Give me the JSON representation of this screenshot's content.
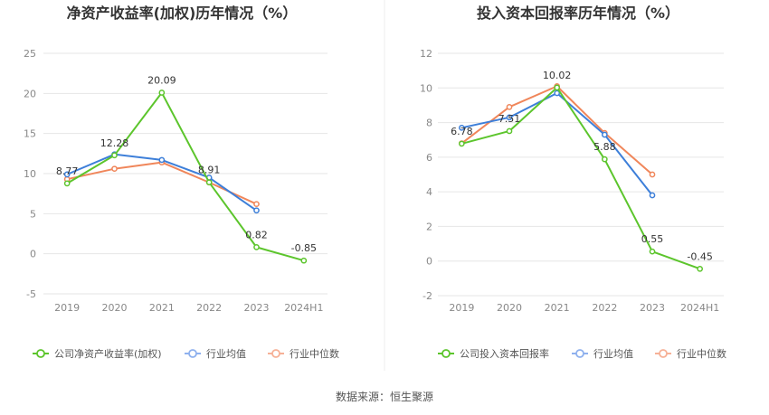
{
  "source_label": "数据来源：恒生聚源",
  "legend_common": {
    "industry_avg": "行业均值",
    "industry_median": "行业中位数"
  },
  "colors": {
    "company": "#5cc52c",
    "avg": "#3d7fd9",
    "median": "#f0865a",
    "grid": "#e6e6e6",
    "legend_avg": "#8fb1ee",
    "legend_median": "#f6b197"
  },
  "chart_data": [
    {
      "type": "line",
      "title": "净资产收益率(加权)历年情况（%）",
      "categories": [
        "2019",
        "2020",
        "2021",
        "2022",
        "2023",
        "2024H1"
      ],
      "yticks": [
        "25",
        "20",
        "15",
        "10",
        "5",
        "0",
        "-5"
      ],
      "ylim": [
        -5,
        25
      ],
      "series": [
        {
          "key": "company",
          "name": "公司净资产收益率(加权)",
          "values": [
            8.77,
            12.28,
            20.09,
            8.91,
            0.82,
            -0.85
          ],
          "labels": [
            "8.77",
            "12.28",
            "20.09",
            "8.91",
            "0.82",
            "-0.85"
          ]
        },
        {
          "key": "avg",
          "name": "行业均值",
          "values": [
            9.9,
            12.4,
            11.7,
            9.5,
            5.4,
            null
          ]
        },
        {
          "key": "median",
          "name": "行业中位数",
          "values": [
            9.3,
            10.6,
            11.4,
            8.9,
            6.2,
            null
          ]
        }
      ]
    },
    {
      "type": "line",
      "title": "投入资本回报率历年情况（%）",
      "categories": [
        "2019",
        "2020",
        "2021",
        "2022",
        "2023",
        "2024H1"
      ],
      "yticks": [
        "12",
        "10",
        "8",
        "6",
        "4",
        "2",
        "0",
        "-2"
      ],
      "ylim": [
        -2,
        12
      ],
      "series": [
        {
          "key": "company",
          "name": "公司投入资本回报率",
          "values": [
            6.78,
            7.51,
            10.02,
            5.88,
            0.55,
            -0.45
          ],
          "labels": [
            "6.78",
            "7.51",
            "10.02",
            "5.88",
            "0.55",
            "-0.45"
          ]
        },
        {
          "key": "avg",
          "name": "行业均值",
          "values": [
            7.7,
            8.3,
            9.7,
            7.3,
            3.8,
            null
          ]
        },
        {
          "key": "median",
          "name": "行业中位数",
          "values": [
            6.8,
            8.9,
            10.1,
            7.4,
            5.0,
            null
          ]
        }
      ]
    }
  ]
}
